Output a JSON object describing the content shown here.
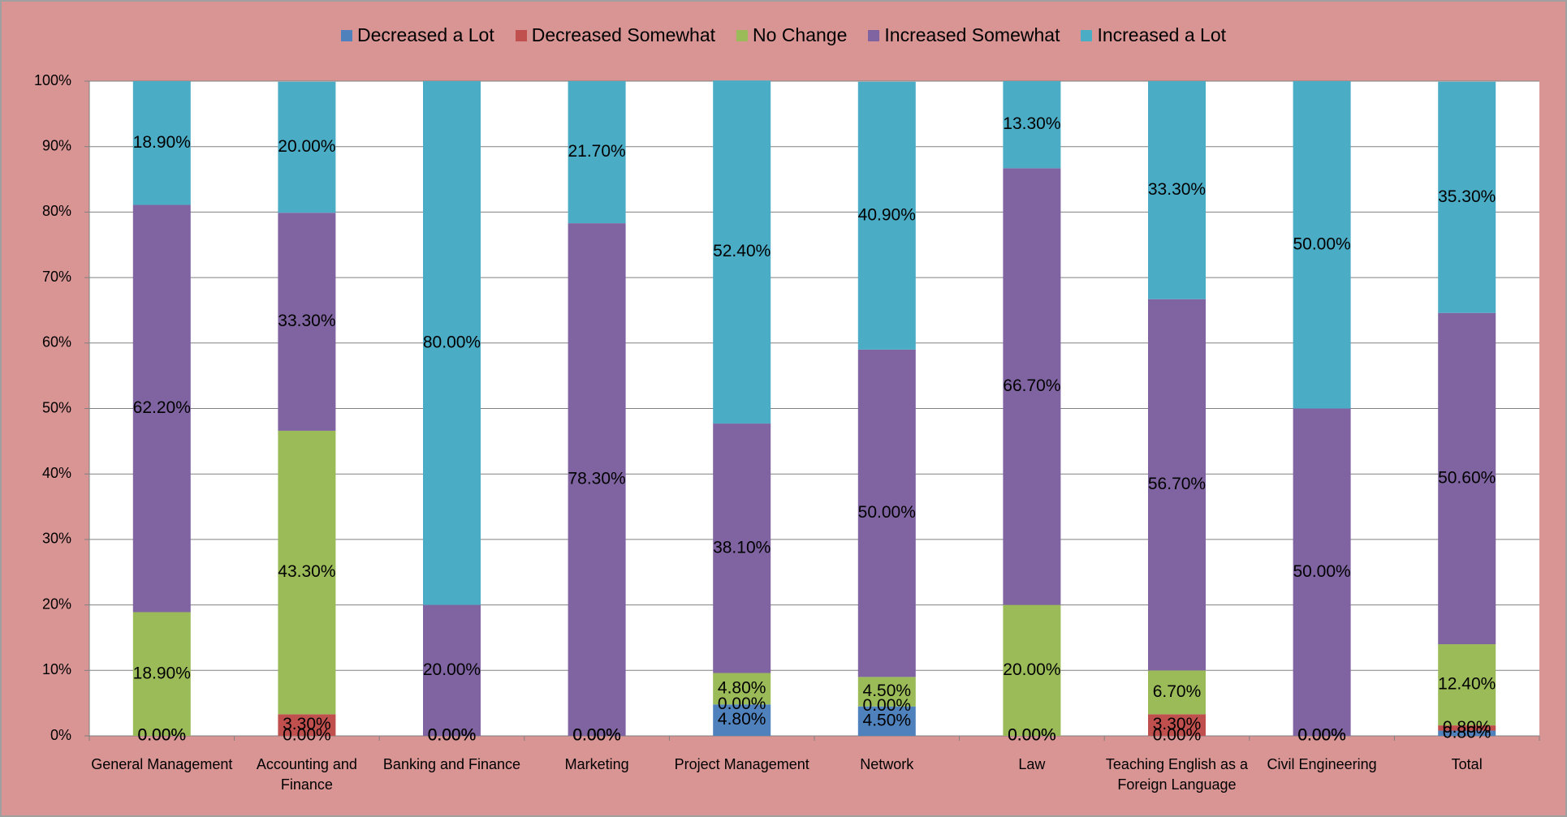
{
  "chart_data": {
    "type": "stacked-bar-percent",
    "categories": [
      "General Management",
      "Accounting and Finance",
      "Banking and Finance",
      "Marketing",
      "Project Management",
      "Network",
      "Law",
      "Teaching English as a Foreign Language",
      "Civil Engineering",
      "Total"
    ],
    "series": [
      {
        "name": "Decreased a Lot",
        "color": "#4f81bd",
        "values": [
          0,
          0,
          0,
          0,
          4.8,
          4.5,
          0,
          0,
          0,
          0.8
        ],
        "value_labels": [
          "0.00%",
          "0.00%",
          "0.00%",
          "0.00%",
          "4.80%",
          "4.50%",
          "0.00%",
          "0.00%",
          "0.00%",
          "0.80%"
        ]
      },
      {
        "name": "Decreased Somewhat",
        "color": "#c0504d",
        "values": [
          0,
          3.3,
          0,
          0,
          0,
          0,
          0,
          3.3,
          0,
          0.8
        ],
        "value_labels": [
          "0.00%",
          "3.30%",
          "0.00%",
          "0.00%",
          "0.00%",
          "0.00%",
          "0.00%",
          "3.30%",
          "0.00%",
          "0.80%"
        ]
      },
      {
        "name": "No Change",
        "color": "#9bbb59",
        "values": [
          18.9,
          43.3,
          0,
          0,
          4.8,
          4.5,
          20,
          6.7,
          0,
          12.4
        ],
        "value_labels": [
          "18.90%",
          "43.30%",
          "0.00%",
          "0.00%",
          "4.80%",
          "4.50%",
          "20.00%",
          "6.70%",
          "0.00%",
          "12.40%"
        ]
      },
      {
        "name": "Increased Somewhat",
        "color": "#8064a2",
        "values": [
          62.2,
          33.3,
          20,
          78.3,
          38.1,
          50,
          66.7,
          56.7,
          50,
          50.6
        ],
        "value_labels": [
          "62.20%",
          "33.30%",
          "20.00%",
          "78.30%",
          "38.10%",
          "50.00%",
          "66.70%",
          "56.70%",
          "50.00%",
          "50.60%"
        ]
      },
      {
        "name": "Increased a Lot",
        "color": "#4bacc6",
        "values": [
          18.9,
          20,
          80,
          21.7,
          52.4,
          40.9,
          13.3,
          33.3,
          50,
          35.3
        ],
        "value_labels": [
          "18.90%",
          "20.00%",
          "80.00%",
          "21.70%",
          "52.40%",
          "40.90%",
          "13.30%",
          "33.30%",
          "50.00%",
          "35.30%"
        ]
      }
    ],
    "ylim": [
      0,
      100
    ],
    "yticks": [
      {
        "value": 0,
        "label": "0%"
      },
      {
        "value": 10,
        "label": "10%"
      },
      {
        "value": 20,
        "label": "20%"
      },
      {
        "value": 30,
        "label": "30%"
      },
      {
        "value": 40,
        "label": "40%"
      },
      {
        "value": 50,
        "label": "50%"
      },
      {
        "value": 60,
        "label": "60%"
      },
      {
        "value": 70,
        "label": "70%"
      },
      {
        "value": 80,
        "label": "80%"
      },
      {
        "value": 90,
        "label": "90%"
      },
      {
        "value": 100,
        "label": "100%"
      }
    ],
    "grid": true,
    "legend": "top"
  }
}
